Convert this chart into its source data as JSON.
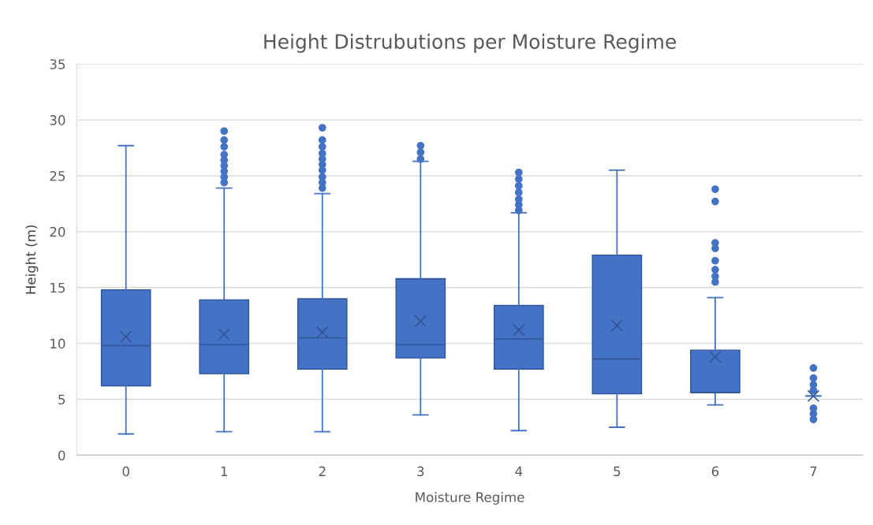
{
  "chart_data": {
    "type": "box",
    "title": "Height Distrubutions per Moisture Regime",
    "xlabel": "Moisture Regime",
    "ylabel": "Height (m)",
    "categories": [
      "0",
      "1",
      "2",
      "3",
      "4",
      "5",
      "6",
      "7"
    ],
    "boxes": [
      {
        "low": 1.9,
        "q1": 6.2,
        "median": 9.8,
        "q3": 14.8,
        "high": 27.7,
        "mean": 10.6
      },
      {
        "low": 2.1,
        "q1": 7.3,
        "median": 9.9,
        "q3": 13.9,
        "high": 23.9,
        "mean": 10.8,
        "outliers": [
          24.4,
          24.9,
          25.4,
          25.9,
          26.4,
          26.9,
          27.6,
          28.2,
          29.0
        ]
      },
      {
        "low": 2.1,
        "q1": 7.7,
        "median": 10.5,
        "q3": 14.0,
        "high": 23.4,
        "mean": 11.0,
        "outliers": [
          23.9,
          24.4,
          24.9,
          25.5,
          26.0,
          26.5,
          27.0,
          27.6,
          28.2,
          29.3
        ]
      },
      {
        "low": 3.6,
        "q1": 8.7,
        "median": 9.9,
        "q3": 15.8,
        "high": 26.3,
        "mean": 12.0,
        "outliers": [
          26.5,
          27.1,
          27.7
        ]
      },
      {
        "low": 2.2,
        "q1": 7.7,
        "median": 10.4,
        "q3": 13.4,
        "high": 21.7,
        "mean": 11.2,
        "outliers": [
          21.9,
          22.4,
          22.9,
          23.5,
          24.1,
          24.7,
          25.3
        ]
      },
      {
        "low": 2.5,
        "q1": 5.5,
        "median": 8.6,
        "q3": 17.9,
        "high": 25.5,
        "mean": 11.6
      },
      {
        "low": 4.5,
        "q1": 5.6,
        "median": 5.6,
        "q3": 9.4,
        "high": 14.1,
        "mean": 8.8,
        "outliers": [
          15.5,
          16.0,
          16.6,
          17.4,
          18.5,
          19.0,
          22.7,
          23.8
        ]
      },
      {
        "low": 5.3,
        "q1": 5.3,
        "median": 5.3,
        "q3": 5.3,
        "high": 5.3,
        "mean": 5.3,
        "outliers": [
          3.2,
          3.7,
          4.2,
          5.8,
          6.3,
          6.9,
          7.8
        ]
      }
    ],
    "color": "#4472c4",
    "ylim": [
      0,
      35
    ],
    "yticks": [
      0,
      5,
      10,
      15,
      20,
      25,
      30,
      35
    ],
    "grid": "y",
    "legend": false
  }
}
